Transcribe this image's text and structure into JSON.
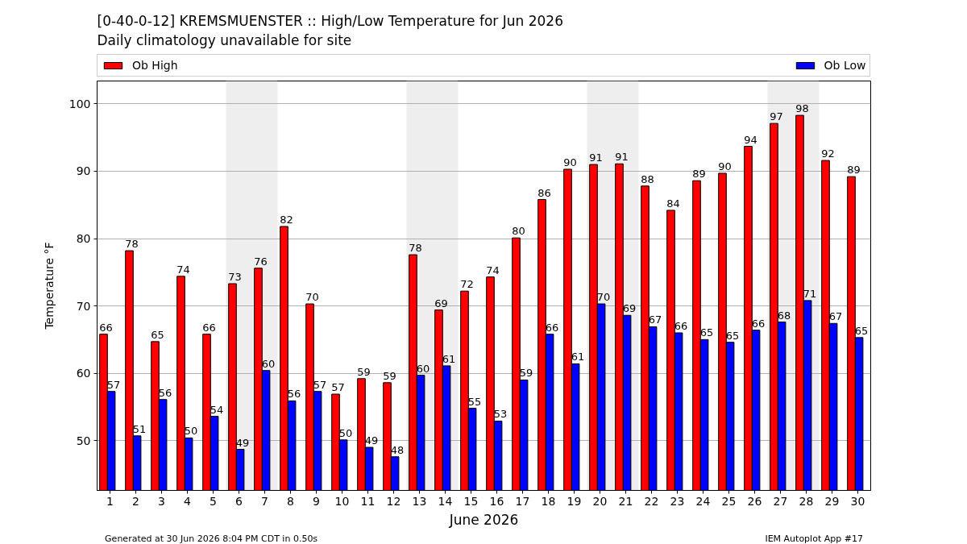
{
  "chart_data": {
    "type": "bar",
    "title": "[0-40-0-12] KREMSMUENSTER :: High/Low Temperature for Jun 2026",
    "subtitle": "Daily climatology unavailable for site",
    "xlabel": "June 2026",
    "ylabel": "Temperature °F",
    "x": [
      1,
      2,
      3,
      4,
      5,
      6,
      7,
      8,
      9,
      10,
      11,
      12,
      13,
      14,
      15,
      16,
      17,
      18,
      19,
      20,
      21,
      22,
      23,
      24,
      25,
      26,
      27,
      28,
      29,
      30
    ],
    "xlim": [
      0.5,
      30.5
    ],
    "xticks": [
      1,
      2,
      3,
      4,
      5,
      6,
      7,
      8,
      9,
      10,
      11,
      12,
      13,
      14,
      15,
      16,
      17,
      18,
      19,
      20,
      21,
      22,
      23,
      24,
      25,
      26,
      27,
      28,
      29,
      30
    ],
    "ylim": [
      42.6,
      103.4
    ],
    "yticks": [
      50,
      60,
      70,
      80,
      90,
      100
    ],
    "series": [
      {
        "name": "Ob High",
        "color": "#ff0000",
        "values": [
          65.8,
          78.2,
          64.7,
          74.4,
          65.8,
          73.3,
          75.6,
          81.8,
          70.3,
          56.9,
          59.2,
          58.6,
          77.6,
          69.4,
          72.2,
          74.3,
          80.1,
          85.8,
          90.3,
          91.0,
          91.1,
          87.8,
          84.2,
          88.6,
          89.7,
          93.7,
          97.1,
          98.3,
          91.6,
          89.2
        ],
        "value_labels": [
          "66",
          "78",
          "65",
          "74",
          "66",
          "73",
          "76",
          "82",
          "70",
          "57",
          "59",
          "59",
          "78",
          "69",
          "72",
          "74",
          "80",
          "86",
          "90",
          "91",
          "91",
          "88",
          "84",
          "89",
          "90",
          "94",
          "97",
          "98",
          "92",
          "89"
        ]
      },
      {
        "name": "Ob Low",
        "color": "#0000ff",
        "values": [
          57.3,
          50.7,
          56.1,
          50.4,
          53.6,
          48.7,
          60.4,
          55.9,
          57.3,
          50.1,
          49.0,
          47.6,
          59.7,
          61.1,
          54.8,
          52.9,
          59.0,
          65.8,
          61.4,
          70.3,
          68.6,
          66.9,
          66.0,
          65.0,
          64.6,
          66.4,
          67.6,
          70.8,
          67.4,
          65.3
        ],
        "value_labels": [
          "57",
          "51",
          "56",
          "50",
          "54",
          "49",
          "60",
          "56",
          "57",
          "50",
          "49",
          "48",
          "60",
          "61",
          "55",
          "53",
          "59",
          "66",
          "61",
          "70",
          "69",
          "67",
          "66",
          "65",
          "65",
          "66",
          "68",
          "71",
          "67",
          "65"
        ]
      }
    ],
    "bands": [
      {
        "axis": "x",
        "from": 5.5,
        "to": 7.5,
        "color": "#eeeeee"
      },
      {
        "axis": "x",
        "from": 12.5,
        "to": 14.5,
        "color": "#eeeeee"
      },
      {
        "axis": "x",
        "from": 19.5,
        "to": 21.5,
        "color": "#eeeeee"
      },
      {
        "axis": "x",
        "from": 26.5,
        "to": 28.5,
        "color": "#eeeeee"
      }
    ],
    "grid": "y",
    "legend": "top",
    "annotations": [
      "Generated at 30 Jun 2026 8:04 PM CDT in 0.50s",
      "IEM Autoplot App #17"
    ]
  }
}
